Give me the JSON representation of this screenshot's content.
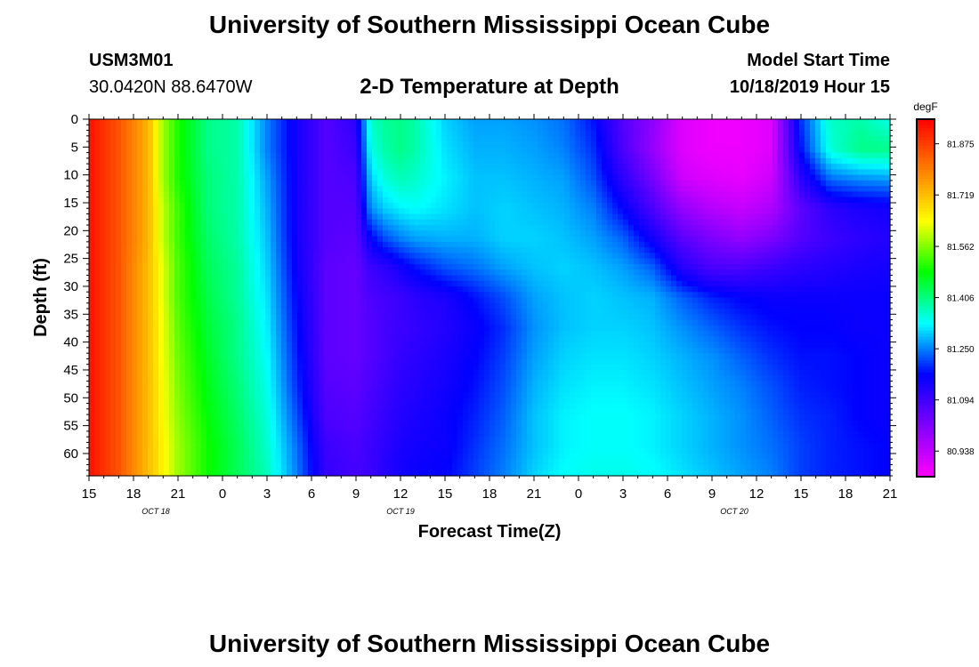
{
  "page": {
    "title_top": "University of Southern Mississippi Ocean Cube",
    "title_bottom": "University of Southern Mississippi Ocean Cube",
    "station_id": "USM3M01",
    "station_location": "30.0420N 88.6470W",
    "model_start_label": "Model Start Time",
    "model_start_value": "10/18/2019 Hour 15"
  },
  "chart_data": {
    "type": "heatmap",
    "title": "2-D Temperature at Depth",
    "xlabel": "Forecast Time(Z)",
    "ylabel": "Depth (ft)",
    "x_tick_labels": [
      "15",
      "18",
      "21",
      "0",
      "3",
      "6",
      "9",
      "12",
      "15",
      "18",
      "21",
      "0",
      "3",
      "6",
      "9",
      "12",
      "15",
      "18",
      "21"
    ],
    "x_date_labels": [
      {
        "label": "OCT 18",
        "at_tick": 1.5
      },
      {
        "label": "OCT 19",
        "at_tick": 7
      },
      {
        "label": "OCT 20",
        "at_tick": 14.5
      }
    ],
    "y_ticks": [
      0,
      5,
      10,
      15,
      20,
      25,
      30,
      35,
      40,
      45,
      50,
      55,
      60
    ],
    "ylim": [
      0,
      64
    ],
    "x_range_hours": [
      0,
      54
    ],
    "colorbar": {
      "unit": "degF",
      "ticks": [
        81.875,
        81.719,
        81.562,
        81.406,
        81.25,
        81.094,
        80.938
      ],
      "range": [
        80.86,
        81.95
      ],
      "colors": [
        "#ff00ff",
        "#8000ff",
        "#0000ff",
        "#00ffff",
        "#00ff00",
        "#ffff00",
        "#ff8000",
        "#ff0000"
      ]
    },
    "profile_hours": [
      0,
      2,
      4,
      5,
      6,
      8,
      10,
      12,
      14,
      16,
      18,
      19,
      20,
      21,
      22,
      24,
      26,
      28,
      30,
      32,
      34,
      36,
      38,
      40,
      42,
      44,
      46,
      48,
      50,
      52,
      54
    ],
    "temperature_degF": [
      [
        81.93,
        81.93,
        81.93,
        81.93,
        81.93,
        81.93,
        81.93,
        81.93,
        81.93,
        81.93,
        81.93,
        81.93,
        81.93
      ],
      [
        81.85,
        81.85,
        81.85,
        81.85,
        81.85,
        81.85,
        81.85,
        81.85,
        81.85,
        81.85,
        81.85,
        81.85,
        81.85
      ],
      [
        81.73,
        81.73,
        81.73,
        81.73,
        81.73,
        81.72,
        81.72,
        81.72,
        81.72,
        81.72,
        81.72,
        81.72,
        81.72
      ],
      [
        81.58,
        81.58,
        81.58,
        81.6,
        81.6,
        81.62,
        81.62,
        81.63,
        81.63,
        81.64,
        81.64,
        81.65,
        81.65
      ],
      [
        81.5,
        81.5,
        81.5,
        81.52,
        81.52,
        81.53,
        81.53,
        81.54,
        81.55,
        81.56,
        81.57,
        81.58,
        81.58
      ],
      [
        81.4,
        81.4,
        81.41,
        81.41,
        81.42,
        81.43,
        81.44,
        81.45,
        81.46,
        81.47,
        81.48,
        81.49,
        81.49
      ],
      [
        81.38,
        81.38,
        81.38,
        81.38,
        81.38,
        81.39,
        81.39,
        81.4,
        81.4,
        81.41,
        81.42,
        81.43,
        81.43
      ],
      [
        81.25,
        81.25,
        81.27,
        81.28,
        81.29,
        81.3,
        81.31,
        81.32,
        81.33,
        81.34,
        81.35,
        81.36,
        81.37
      ],
      [
        81.15,
        81.15,
        81.15,
        81.15,
        81.15,
        81.16,
        81.17,
        81.18,
        81.19,
        81.2,
        81.22,
        81.24,
        81.25
      ],
      [
        81.07,
        81.07,
        81.07,
        81.07,
        81.07,
        81.06,
        81.06,
        81.06,
        81.06,
        81.07,
        81.08,
        81.1,
        81.11
      ],
      [
        81.12,
        81.1,
        81.08,
        81.07,
        81.06,
        81.05,
        81.05,
        81.05,
        81.05,
        81.06,
        81.07,
        81.08,
        81.09
      ],
      [
        81.36,
        81.34,
        81.3,
        81.26,
        81.17,
        81.1,
        81.08,
        81.07,
        81.07,
        81.08,
        81.09,
        81.1,
        81.1
      ],
      [
        81.39,
        81.38,
        81.35,
        81.3,
        81.22,
        81.12,
        81.09,
        81.09,
        81.09,
        81.1,
        81.11,
        81.12,
        81.13
      ],
      [
        81.4,
        81.4,
        81.37,
        81.32,
        81.25,
        81.15,
        81.1,
        81.1,
        81.11,
        81.12,
        81.13,
        81.14,
        81.15
      ],
      [
        81.38,
        81.38,
        81.36,
        81.33,
        81.27,
        81.18,
        81.12,
        81.11,
        81.12,
        81.13,
        81.14,
        81.15,
        81.16
      ],
      [
        81.3,
        81.31,
        81.32,
        81.31,
        81.28,
        81.22,
        81.14,
        81.13,
        81.14,
        81.15,
        81.16,
        81.16,
        81.17
      ],
      [
        81.27,
        81.28,
        81.29,
        81.29,
        81.28,
        81.24,
        81.18,
        81.16,
        81.17,
        81.18,
        81.19,
        81.2,
        81.21
      ],
      [
        81.27,
        81.28,
        81.29,
        81.3,
        81.3,
        81.27,
        81.22,
        81.2,
        81.21,
        81.22,
        81.23,
        81.24,
        81.25
      ],
      [
        81.26,
        81.27,
        81.28,
        81.29,
        81.3,
        81.29,
        81.27,
        81.26,
        81.27,
        81.28,
        81.29,
        81.29,
        81.3
      ],
      [
        81.24,
        81.25,
        81.27,
        81.28,
        81.29,
        81.3,
        81.29,
        81.29,
        81.3,
        81.31,
        81.32,
        81.32,
        81.33
      ],
      [
        81.18,
        81.2,
        81.22,
        81.25,
        81.27,
        81.29,
        81.3,
        81.3,
        81.31,
        81.32,
        81.33,
        81.33,
        81.34
      ],
      [
        81.07,
        81.08,
        81.12,
        81.17,
        81.23,
        81.27,
        81.29,
        81.3,
        81.31,
        81.32,
        81.33,
        81.33,
        81.34
      ],
      [
        81.0,
        80.99,
        81.03,
        81.08,
        81.15,
        81.23,
        81.28,
        81.29,
        81.3,
        81.31,
        81.32,
        81.32,
        81.33
      ],
      [
        80.9,
        80.9,
        80.92,
        80.99,
        81.06,
        81.13,
        81.23,
        81.26,
        81.28,
        81.29,
        81.3,
        81.3,
        81.31
      ],
      [
        80.88,
        80.88,
        80.9,
        80.95,
        81.02,
        81.08,
        81.19,
        81.23,
        81.26,
        81.27,
        81.28,
        81.28,
        81.29
      ],
      [
        80.88,
        80.88,
        80.89,
        80.93,
        80.99,
        81.08,
        81.17,
        81.2,
        81.23,
        81.25,
        81.26,
        81.26,
        81.27
      ],
      [
        80.9,
        80.9,
        80.92,
        80.96,
        81.02,
        81.1,
        81.16,
        81.18,
        81.2,
        81.22,
        81.23,
        81.24,
        81.25
      ],
      [
        81.2,
        81.18,
        81.12,
        81.06,
        81.07,
        81.12,
        81.16,
        81.17,
        81.18,
        81.19,
        81.2,
        81.21,
        81.21
      ],
      [
        81.36,
        81.35,
        81.24,
        81.12,
        81.1,
        81.13,
        81.16,
        81.17,
        81.18,
        81.18,
        81.19,
        81.19,
        81.19
      ],
      [
        81.38,
        81.4,
        81.26,
        81.14,
        81.12,
        81.14,
        81.16,
        81.16,
        81.17,
        81.17,
        81.17,
        81.18,
        81.18
      ],
      [
        81.34,
        81.4,
        81.27,
        81.15,
        81.13,
        81.15,
        81.16,
        81.16,
        81.16,
        81.16,
        81.16,
        81.17,
        81.17
      ]
    ]
  }
}
